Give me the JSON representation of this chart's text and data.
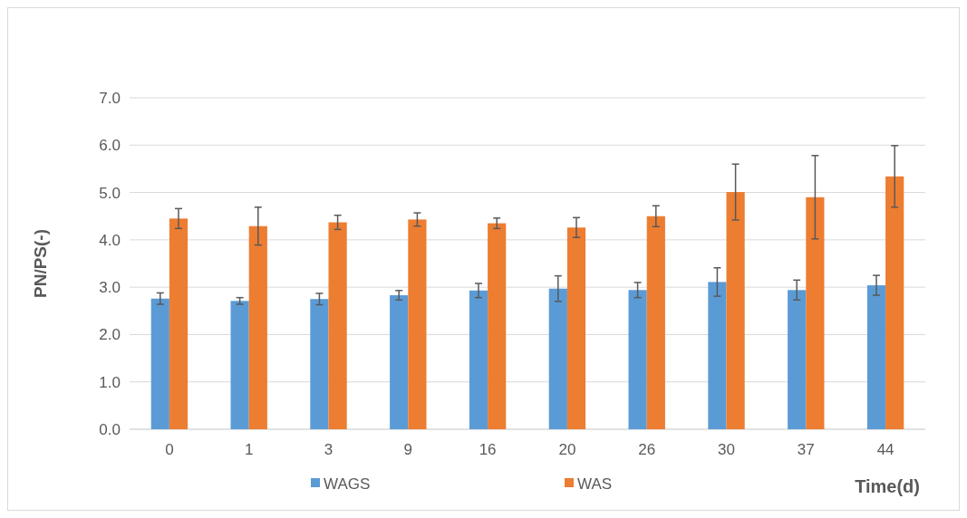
{
  "chart_data": {
    "type": "bar",
    "xlabel": "Time(d)",
    "ylabel": "PN/PS(-)",
    "categories": [
      "0",
      "1",
      "3",
      "9",
      "16",
      "20",
      "26",
      "30",
      "37",
      "44"
    ],
    "series": [
      {
        "name": "WAGS",
        "color": "#5b9bd5",
        "values": [
          2.76,
          2.71,
          2.75,
          2.83,
          2.93,
          2.97,
          2.94,
          3.11,
          2.94,
          3.04
        ],
        "errors": [
          0.12,
          0.07,
          0.12,
          0.1,
          0.15,
          0.27,
          0.16,
          0.3,
          0.21,
          0.21
        ]
      },
      {
        "name": "WAS",
        "color": "#ed7d31",
        "values": [
          4.45,
          4.29,
          4.37,
          4.43,
          4.35,
          4.26,
          4.5,
          5.01,
          4.9,
          5.34
        ],
        "errors": [
          0.21,
          0.4,
          0.15,
          0.14,
          0.11,
          0.21,
          0.22,
          0.59,
          0.88,
          0.65
        ]
      }
    ],
    "ylim": [
      0,
      7
    ],
    "yticks": [
      {
        "value": 0,
        "label": "0.0"
      },
      {
        "value": 1,
        "label": "1.0"
      },
      {
        "value": 2,
        "label": "2.0"
      },
      {
        "value": 3,
        "label": "3.0"
      },
      {
        "value": 4,
        "label": "4.0"
      },
      {
        "value": 5,
        "label": "5.0"
      },
      {
        "value": 6,
        "label": "6.0"
      },
      {
        "value": 7,
        "label": "7.0"
      }
    ],
    "grid": "y",
    "legend": "bottom"
  }
}
